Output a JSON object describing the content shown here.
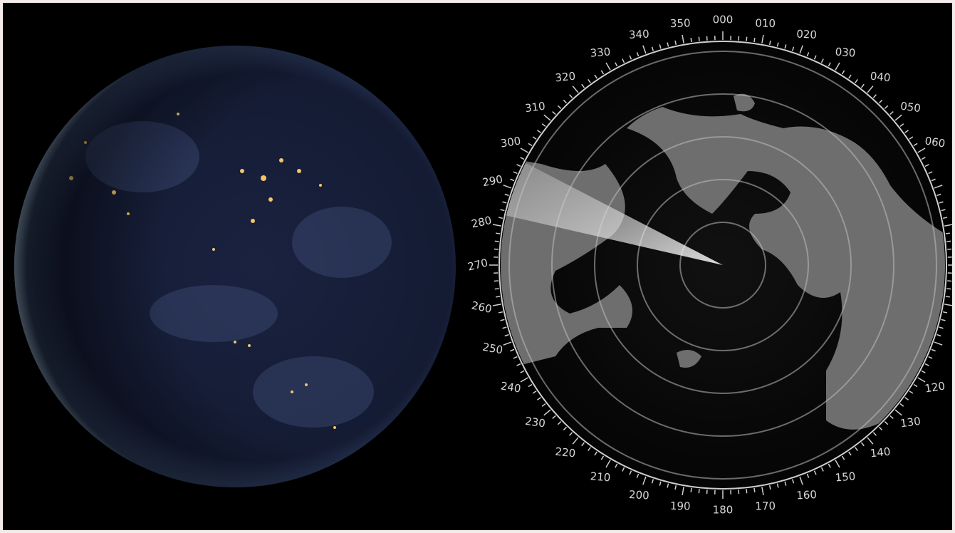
{
  "radar": {
    "bearings": [
      "000",
      "010",
      "020",
      "030",
      "040",
      "050",
      "060",
      "120",
      "130",
      "140",
      "150",
      "160",
      "170",
      "180",
      "190",
      "200",
      "210",
      "220",
      "230",
      "240",
      "250",
      "260",
      "270",
      "280",
      "290",
      "300",
      "310",
      "320",
      "330",
      "340",
      "350"
    ]
  }
}
